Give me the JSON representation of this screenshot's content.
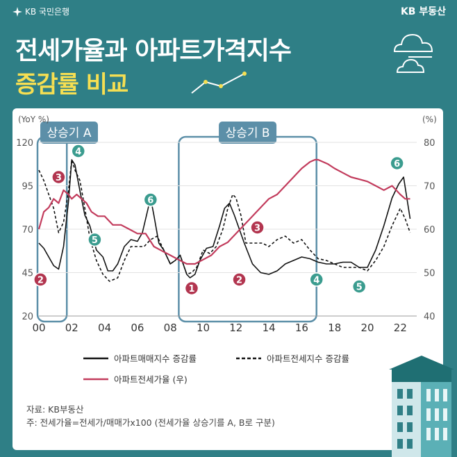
{
  "header": {
    "bank_logo_text": "KB 국민은행",
    "brand_right": "KB 부동산",
    "title_line1": "전세가율과 아파트가격지수",
    "title_line2": "증감률 비교"
  },
  "colors": {
    "background": "#2f7f86",
    "accent_yellow": "#f6df52",
    "series_red": "#c23b5c",
    "marker_teal": "#3b9c8f",
    "marker_red": "#b2354f",
    "band": "#5c8fa8"
  },
  "icons": [
    "kb-star-icon",
    "cloud-icon",
    "line-chart-icon",
    "building-icon"
  ],
  "chart_data": {
    "type": "line",
    "y_left": {
      "unit_label": "(YoY %)",
      "ticks": [
        20,
        45,
        70,
        95,
        120
      ],
      "range": [
        20,
        120
      ]
    },
    "y_right": {
      "unit_label": "(%)",
      "ticks": [
        40,
        50,
        60,
        70,
        80
      ],
      "range": [
        40,
        80
      ]
    },
    "x": {
      "range": [
        2000,
        2023
      ],
      "ticks": [
        2000,
        2002,
        2004,
        2006,
        2008,
        2010,
        2012,
        2014,
        2016,
        2018,
        2020,
        2022
      ],
      "tick_labels": [
        "00",
        "02",
        "04",
        "06",
        "08",
        "10",
        "12",
        "14",
        "16",
        "18",
        "20",
        "22"
      ]
    },
    "series": [
      {
        "name": "아파트매매지수 증감률",
        "axis": "left",
        "style": "solid",
        "color": "#111111",
        "x": [
          2000,
          2000.3,
          2000.6,
          2000.9,
          2001.2,
          2001.5,
          2001.8,
          2002.0,
          2002.2,
          2002.5,
          2002.8,
          2003.1,
          2003.5,
          2003.9,
          2004.2,
          2004.5,
          2004.8,
          2005.2,
          2005.6,
          2006.0,
          2006.3,
          2006.6,
          2006.8,
          2007.0,
          2007.3,
          2007.6,
          2008.0,
          2008.3,
          2008.6,
          2009.0,
          2009.2,
          2009.5,
          2009.8,
          2010.2,
          2010.6,
          2011.0,
          2011.3,
          2011.6,
          2011.9,
          2012.2,
          2012.5,
          2013.0,
          2013.5,
          2014.0,
          2014.5,
          2015.0,
          2015.5,
          2016.0,
          2016.5,
          2017.0,
          2017.5,
          2018.0,
          2018.5,
          2019.0,
          2019.5,
          2020.0,
          2020.5,
          2021.0,
          2021.5,
          2021.9,
          2022.2,
          2022.4,
          2022.6
        ],
        "y": [
          62,
          59,
          54,
          49,
          47,
          60,
          86,
          110,
          107,
          92,
          78,
          72,
          58,
          54,
          46,
          46,
          50,
          60,
          64,
          63,
          68,
          80,
          88,
          78,
          62,
          58,
          50,
          52,
          55,
          44,
          42,
          44,
          52,
          59,
          60,
          72,
          82,
          85,
          78,
          70,
          62,
          50,
          45,
          44,
          46,
          50,
          52,
          54,
          53,
          51,
          50,
          50,
          51,
          51,
          48,
          48,
          58,
          72,
          88,
          96,
          100,
          88,
          76
        ]
      },
      {
        "name": "아파트전세지수 증감률",
        "axis": "left",
        "style": "dashed",
        "color": "#111111",
        "x": [
          2000,
          2000.3,
          2000.6,
          2000.9,
          2001.2,
          2001.5,
          2001.8,
          2002.0,
          2002.2,
          2002.5,
          2002.8,
          2003.1,
          2003.5,
          2003.9,
          2004.3,
          2004.8,
          2005.2,
          2005.6,
          2006.0,
          2006.4,
          2006.8,
          2007.2,
          2007.6,
          2008.0,
          2008.3,
          2008.6,
          2009.0,
          2009.3,
          2009.6,
          2010.0,
          2010.4,
          2010.8,
          2011.2,
          2011.5,
          2011.8,
          2012.0,
          2012.3,
          2012.6,
          2013.0,
          2013.3,
          2013.6,
          2014.0,
          2014.5,
          2015.0,
          2015.5,
          2016.0,
          2016.5,
          2017.0,
          2017.5,
          2018.0,
          2018.5,
          2019.0,
          2019.5,
          2020.0,
          2020.5,
          2021.0,
          2021.5,
          2022.0,
          2022.3,
          2022.6
        ],
        "y": [
          104,
          98,
          90,
          82,
          68,
          74,
          92,
          110,
          104,
          98,
          82,
          65,
          52,
          44,
          40,
          42,
          52,
          60,
          60,
          60,
          64,
          66,
          58,
          50,
          52,
          55,
          44,
          45,
          48,
          58,
          56,
          60,
          70,
          82,
          90,
          88,
          78,
          62,
          62,
          62,
          62,
          60,
          64,
          66,
          62,
          64,
          58,
          53,
          52,
          50,
          48,
          48,
          48,
          46,
          52,
          60,
          72,
          82,
          76,
          68
        ]
      },
      {
        "name": "아파트전세가율 (우)",
        "axis": "right",
        "style": "solid",
        "color": "#c23b5c",
        "x": [
          2000,
          2000.3,
          2000.6,
          2000.9,
          2001.2,
          2001.5,
          2001.8,
          2002.0,
          2002.3,
          2002.6,
          2002.9,
          2003.2,
          2003.6,
          2004.0,
          2004.5,
          2005.0,
          2005.5,
          2006.0,
          2006.5,
          2007.0,
          2007.5,
          2008.0,
          2008.5,
          2009.0,
          2009.5,
          2010.0,
          2010.5,
          2011.0,
          2011.5,
          2012.0,
          2012.5,
          2013.0,
          2013.5,
          2014.0,
          2014.5,
          2015.0,
          2015.5,
          2016.0,
          2016.5,
          2016.8,
          2017.0,
          2017.3,
          2017.6,
          2018.0,
          2018.5,
          2019.0,
          2019.5,
          2020.0,
          2020.5,
          2021.0,
          2021.5,
          2022.0,
          2022.3,
          2022.6
        ],
        "y": [
          60,
          64,
          65,
          67,
          66,
          69,
          68,
          67,
          68,
          67,
          66,
          64,
          63,
          63,
          61,
          61,
          60,
          59,
          59,
          56,
          55,
          54,
          53,
          52,
          52,
          53,
          54,
          56,
          57,
          59,
          61,
          63,
          65,
          67,
          68,
          70,
          72,
          74,
          75.5,
          76,
          76,
          75.5,
          75,
          74,
          73,
          72,
          71.5,
          71,
          70,
          69,
          70,
          68,
          67,
          67
        ]
      }
    ],
    "bands": [
      {
        "label": "상승기 A",
        "x_range": [
          2000,
          2001.7
        ]
      },
      {
        "label": "상승기 B",
        "x_range": [
          2008.6,
          2016.9
        ]
      }
    ],
    "annotations": [
      {
        "label": "2",
        "x": 2000.1,
        "y": 41,
        "axis": "left",
        "color": "red"
      },
      {
        "label": "3",
        "x": 2001.2,
        "y": 100,
        "axis": "left",
        "color": "red"
      },
      {
        "label": "4",
        "x": 2002.4,
        "y": 115,
        "axis": "left",
        "color": "teal"
      },
      {
        "label": "5",
        "x": 2003.4,
        "y": 64,
        "axis": "left",
        "color": "teal"
      },
      {
        "label": "6",
        "x": 2006.8,
        "y": 87,
        "axis": "left",
        "color": "teal"
      },
      {
        "label": "1",
        "x": 2009.3,
        "y": 36,
        "axis": "left",
        "color": "red"
      },
      {
        "label": "2",
        "x": 2012.2,
        "y": 41,
        "axis": "left",
        "color": "red"
      },
      {
        "label": "3",
        "x": 2013.3,
        "y": 71,
        "axis": "left",
        "color": "red"
      },
      {
        "label": "4",
        "x": 2016.9,
        "y": 41,
        "axis": "left",
        "color": "teal"
      },
      {
        "label": "5",
        "x": 2019.5,
        "y": 37,
        "axis": "left",
        "color": "teal"
      },
      {
        "label": "6",
        "x": 2021.8,
        "y": 108,
        "axis": "left",
        "color": "teal"
      }
    ],
    "legend": {
      "placement": "bottom",
      "items": [
        "아파트매매지수 증감률",
        "아파트전세지수 증감률",
        "아파트전세가율 (우)"
      ]
    }
  },
  "notes": {
    "source": "자료: KB부동산",
    "footnote": "주: 전세가율=전세가/매매가x100 (전세가율 상승기를 A, B로 구분)"
  }
}
